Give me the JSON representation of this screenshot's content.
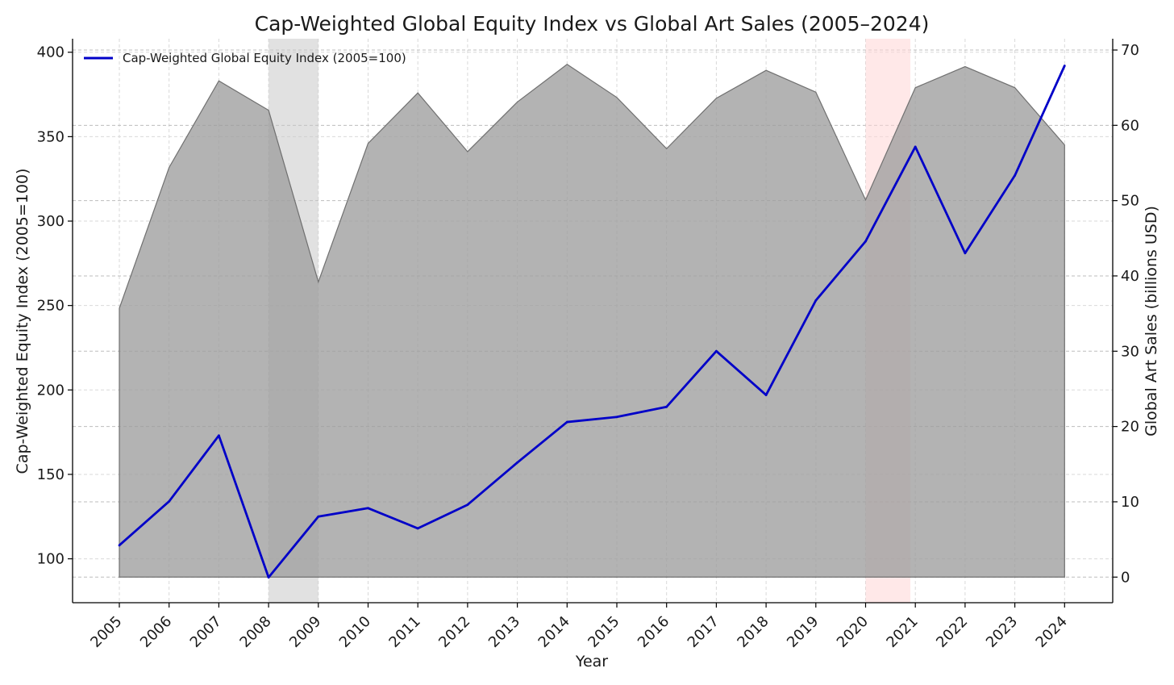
{
  "chart_data": {
    "type": "line",
    "title": "Cap-Weighted Global Equity Index vs Global Art Sales (2005–2024)",
    "xlabel": "Year",
    "ylabel_left": "Cap-Weighted Equity Index (2005=100)",
    "ylabel_right": "Global Art Sales (billions USD)",
    "categories": [
      "2005",
      "2006",
      "2007",
      "2008",
      "2009",
      "2010",
      "2011",
      "2012",
      "2013",
      "2014",
      "2015",
      "2016",
      "2017",
      "2018",
      "2019",
      "2020",
      "2021",
      "2022",
      "2023",
      "2024"
    ],
    "ylim_left": [
      74,
      408
    ],
    "yticks_left": [
      100,
      150,
      200,
      250,
      300,
      350,
      400
    ],
    "ylim_right": [
      -3.4,
      71.5
    ],
    "yticks_right": [
      0,
      10,
      20,
      30,
      40,
      50,
      60,
      70
    ],
    "grid": true,
    "legend_position": "top-left",
    "series": [
      {
        "name": "Cap-Weighted Global Equity Index (2005=100)",
        "type": "line",
        "axis": "left",
        "color": "#0000c8",
        "values": [
          108,
          134,
          173,
          89,
          125,
          130,
          118,
          132,
          157,
          181,
          184,
          190,
          223,
          197,
          253,
          288,
          344,
          281,
          327,
          392
        ]
      },
      {
        "type": "area",
        "axis": "right",
        "color": "#9e9e9e",
        "values": [
          35.7,
          54.4,
          65.9,
          62.0,
          39.2,
          57.6,
          64.3,
          56.5,
          63.1,
          68.1,
          63.7,
          56.9,
          63.6,
          67.3,
          64.4,
          50.1,
          65.0,
          67.8,
          65.0,
          57.4
        ]
      }
    ],
    "shaded_periods": [
      {
        "start": "2008",
        "end": "2009",
        "color": "#c8c8c8"
      },
      {
        "start": "2020",
        "end": "2020.9",
        "color": "#ffd5d5"
      }
    ]
  }
}
